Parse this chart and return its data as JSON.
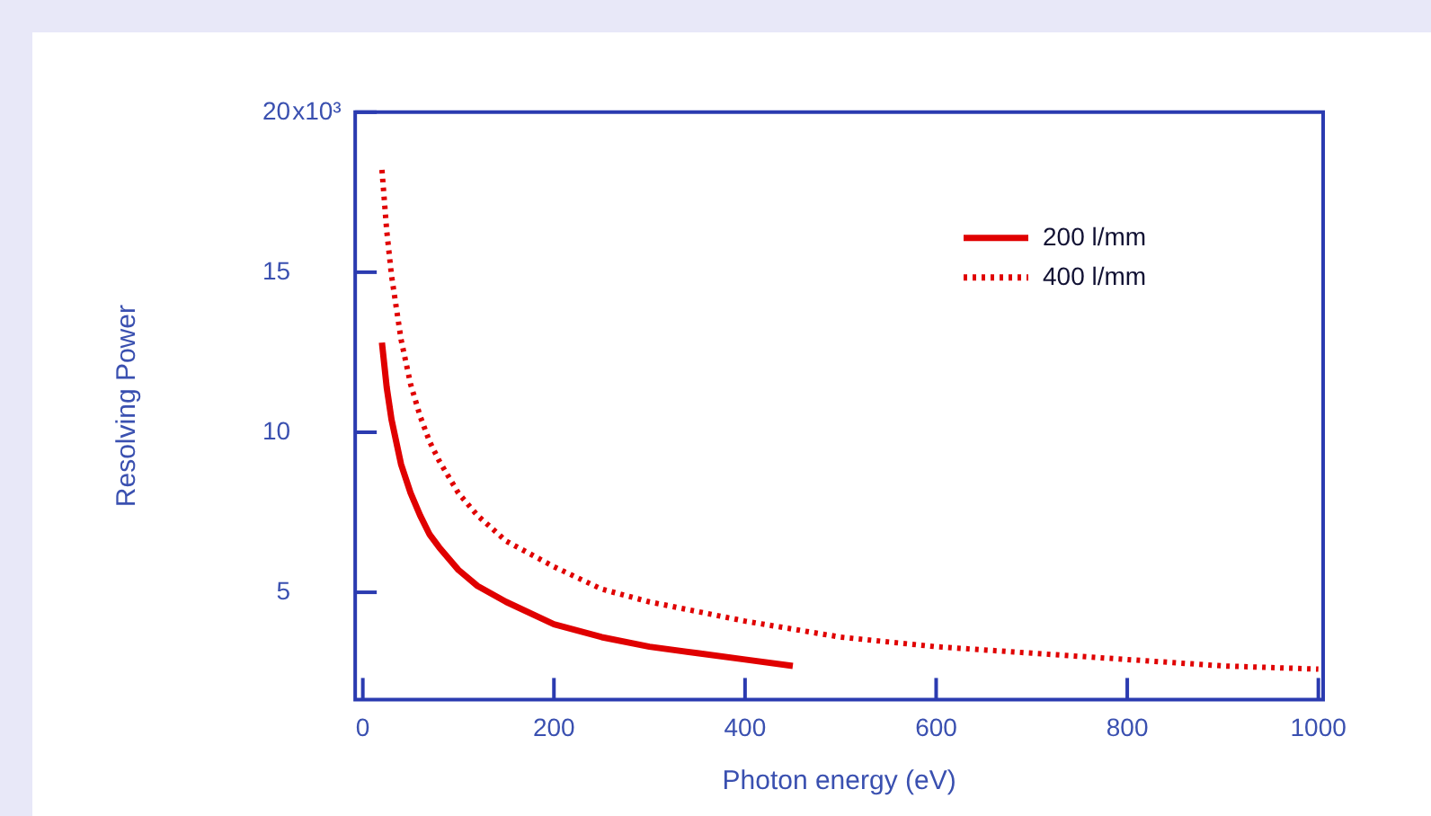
{
  "chart_data": {
    "type": "line",
    "xlabel": "Photon energy (eV)",
    "ylabel": "Resolving Power",
    "xlim": [
      -8,
      1005
    ],
    "xticks": [
      0,
      200,
      400,
      600,
      800,
      1000
    ],
    "ylim": [
      1.65,
      20
    ],
    "yticks": [
      5,
      10,
      15,
      20
    ],
    "annotations": [
      "x10³"
    ],
    "grid": false,
    "legend": "top right",
    "marker": "none",
    "series": [
      {
        "name": "200 l/mm",
        "color": "#e00000",
        "line_style": "solid",
        "x": [
          20,
          25,
          30,
          40,
          50,
          60,
          70,
          80,
          100,
          120,
          150,
          200,
          250,
          300,
          350,
          400,
          450
        ],
        "values": [
          12.8,
          11.4,
          10.4,
          9.0,
          8.1,
          7.4,
          6.8,
          6.4,
          5.7,
          5.2,
          4.7,
          4.0,
          3.6,
          3.3,
          3.1,
          2.9,
          2.7
        ]
      },
      {
        "name": "400 l/mm",
        "color": "#e00000",
        "line_style": "dotted",
        "x": [
          20,
          25,
          30,
          40,
          50,
          60,
          70,
          80,
          100,
          120,
          150,
          200,
          250,
          300,
          400,
          500,
          600,
          700,
          800,
          900,
          1000
        ],
        "values": [
          18.2,
          16.3,
          14.9,
          12.9,
          11.5,
          10.5,
          9.7,
          9.1,
          8.1,
          7.4,
          6.6,
          5.8,
          5.1,
          4.7,
          4.1,
          3.6,
          3.3,
          3.1,
          2.9,
          2.7,
          2.6
        ]
      }
    ]
  }
}
